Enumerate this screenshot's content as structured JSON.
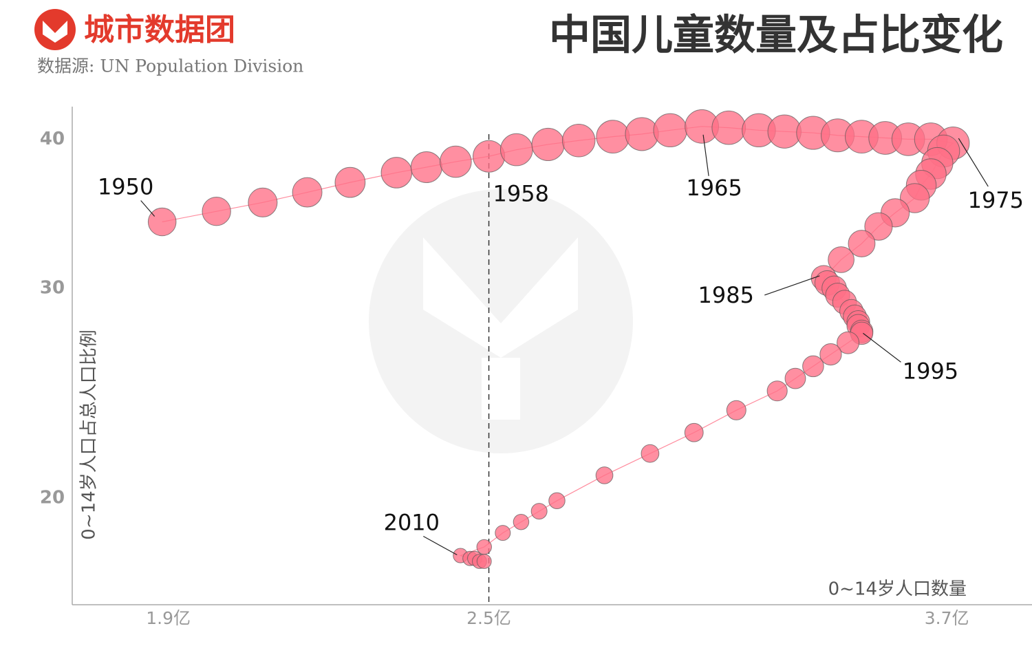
{
  "chart_data": {
    "type": "bubble",
    "brand": "城市数据团",
    "title": "中国儿童数量及占比变化",
    "source": "数据源: UN Population Division",
    "x_label": "0~14岁人口数量",
    "y_label": "0~14岁人口占总人口比例",
    "x_scale": "log",
    "y_scale": "log",
    "xlim": [
      1.75,
      3.98
    ],
    "ylim": [
      16.3,
      42.6
    ],
    "xticks": [
      {
        "value": 1.9,
        "label": "1.9亿"
      },
      {
        "value": 2.5,
        "label": "2.5亿"
      },
      {
        "value": 3.7,
        "label": "3.7亿"
      }
    ],
    "yticks": [
      40,
      30,
      20
    ],
    "reference_x": 2.5,
    "color": "#ff6f86",
    "x": [
      1.89,
      1.98,
      2.06,
      2.14,
      2.22,
      2.31,
      2.37,
      2.43,
      2.5,
      2.56,
      2.63,
      2.7,
      2.78,
      2.85,
      2.92,
      3.0,
      3.07,
      3.15,
      3.22,
      3.3,
      3.37,
      3.44,
      3.51,
      3.58,
      3.65,
      3.72,
      3.69,
      3.67,
      3.65,
      3.62,
      3.6,
      3.54,
      3.49,
      3.44,
      3.38,
      3.33,
      3.34,
      3.36,
      3.37,
      3.39,
      3.41,
      3.42,
      3.43,
      3.43,
      3.44,
      3.44,
      3.4,
      3.35,
      3.3,
      3.25,
      3.2,
      3.09,
      2.98,
      2.87,
      2.76,
      2.65,
      2.61,
      2.57,
      2.53,
      2.49,
      2.44,
      2.46,
      2.47,
      2.48,
      2.49
    ],
    "values": [
      34.1,
      34.8,
      35.4,
      36.1,
      36.8,
      37.5,
      37.9,
      38.3,
      38.7,
      39.2,
      39.6,
      39.9,
      40.2,
      40.4,
      40.7,
      41.0,
      40.9,
      40.7,
      40.6,
      40.5,
      40.3,
      40.2,
      40.1,
      40.0,
      40.0,
      39.7,
      39.1,
      38.2,
      37.4,
      36.6,
      35.7,
      34.7,
      33.8,
      32.7,
      31.7,
      30.6,
      30.3,
      30.0,
      29.6,
      29.2,
      28.7,
      28.4,
      28.1,
      27.9,
      27.6,
      27.5,
      27.0,
      26.4,
      25.8,
      25.2,
      24.6,
      23.7,
      22.7,
      21.8,
      20.9,
      19.9,
      19.5,
      19.1,
      18.7,
      18.2,
      17.9,
      17.8,
      17.8,
      17.7,
      17.7
    ],
    "point_labels": [
      "1950",
      null,
      null,
      null,
      null,
      null,
      null,
      null,
      "1958",
      null,
      null,
      null,
      null,
      null,
      null,
      "1965",
      null,
      null,
      null,
      null,
      null,
      null,
      null,
      null,
      null,
      "1975",
      null,
      null,
      null,
      null,
      null,
      null,
      null,
      null,
      null,
      "1985",
      null,
      null,
      null,
      null,
      null,
      null,
      null,
      null,
      null,
      "1995",
      null,
      null,
      null,
      null,
      null,
      null,
      null,
      null,
      null,
      null,
      null,
      null,
      null,
      null,
      "2010",
      null,
      null,
      null,
      null
    ]
  }
}
